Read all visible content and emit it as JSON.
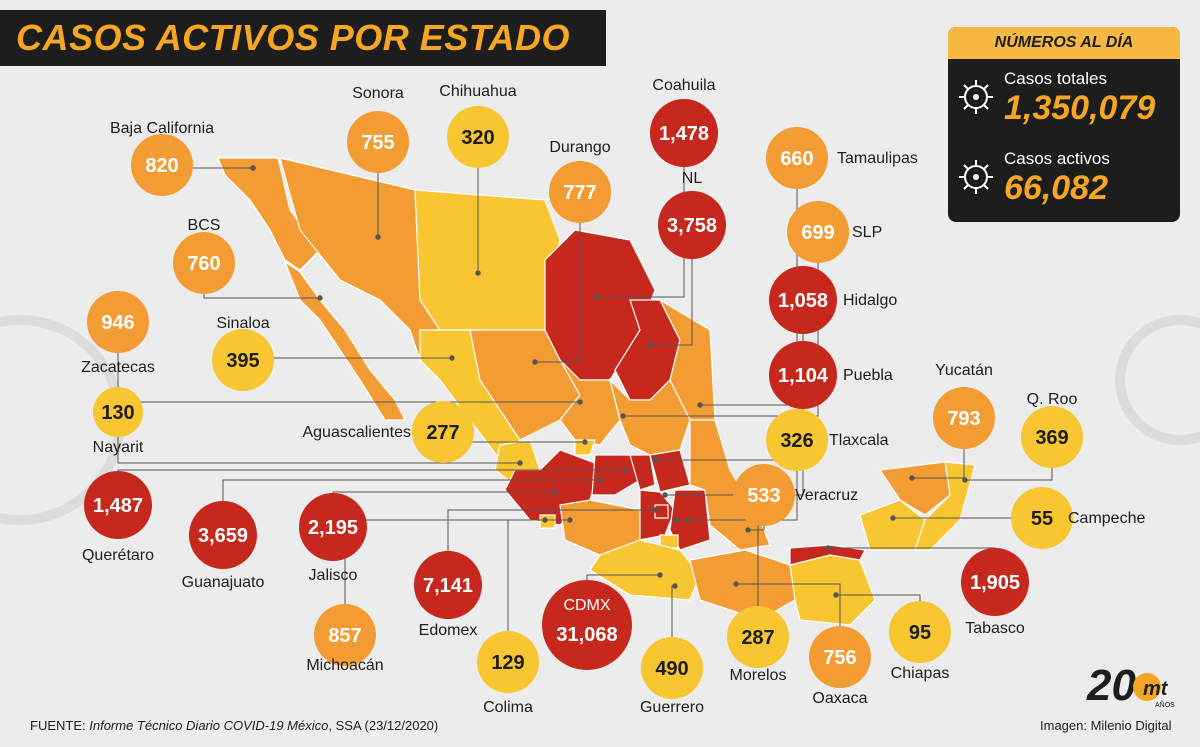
{
  "title": "CASOS ACTIVOS POR ESTADO",
  "summary": {
    "header": "NÚMEROS AL DÍA",
    "total_label": "Casos totales",
    "total_value": "1,350,079",
    "active_label": "Casos activos",
    "active_value": "66,082"
  },
  "footer": {
    "source_prefix": "FUENTE: ",
    "source_title": "Informe Técnico Diario COVID-19 México",
    "source_suffix": ", SSA (23/12/2020)",
    "image_credit": "Imagen: Milenio Digital"
  },
  "logo": {
    "big": "20",
    "small": "mt",
    "sub": "AÑOS"
  },
  "colors": {
    "low": "#f7c631",
    "mid": "#f39c33",
    "high": "#c7281e",
    "dark": "#1d1d1d",
    "accent": "#f5a623"
  },
  "chart_data": {
    "type": "choropleth-map",
    "title": "CASOS ACTIVOS POR ESTADO",
    "unit": "casos activos",
    "states": [
      {
        "name": "Baja California",
        "value": 820
      },
      {
        "name": "Sonora",
        "value": 755
      },
      {
        "name": "Chihuahua",
        "value": 320
      },
      {
        "name": "Coahuila",
        "value": 1478
      },
      {
        "name": "Durango",
        "value": 777
      },
      {
        "name": "NL",
        "value": 3758
      },
      {
        "name": "Tamaulipas",
        "value": 660
      },
      {
        "name": "BCS",
        "value": 760
      },
      {
        "name": "SLP",
        "value": 699
      },
      {
        "name": "Hidalgo",
        "value": 1058
      },
      {
        "name": "Zacatecas",
        "value": 946
      },
      {
        "name": "Sinaloa",
        "value": 395
      },
      {
        "name": "Puebla",
        "value": 1104
      },
      {
        "name": "Nayarit",
        "value": 130
      },
      {
        "name": "Aguascalientes",
        "value": 277
      },
      {
        "name": "Yucatán",
        "value": 793
      },
      {
        "name": "Q. Roo",
        "value": 369
      },
      {
        "name": "Tlaxcala",
        "value": 326
      },
      {
        "name": "Querétaro",
        "value": 1487
      },
      {
        "name": "Veracruz",
        "value": 533
      },
      {
        "name": "Campeche",
        "value": 55
      },
      {
        "name": "Guanajuato",
        "value": 3659
      },
      {
        "name": "Jalisco",
        "value": 2195
      },
      {
        "name": "Edomex",
        "value": 7141
      },
      {
        "name": "CDMX",
        "value": 31068
      },
      {
        "name": "Tabasco",
        "value": 1905
      },
      {
        "name": "Michoacán",
        "value": 857
      },
      {
        "name": "Morelos",
        "value": 287
      },
      {
        "name": "Oaxaca",
        "value": 756
      },
      {
        "name": "Chiapas",
        "value": 95
      },
      {
        "name": "Colima",
        "value": 129
      },
      {
        "name": "Guerrero",
        "value": 490
      }
    ]
  }
}
